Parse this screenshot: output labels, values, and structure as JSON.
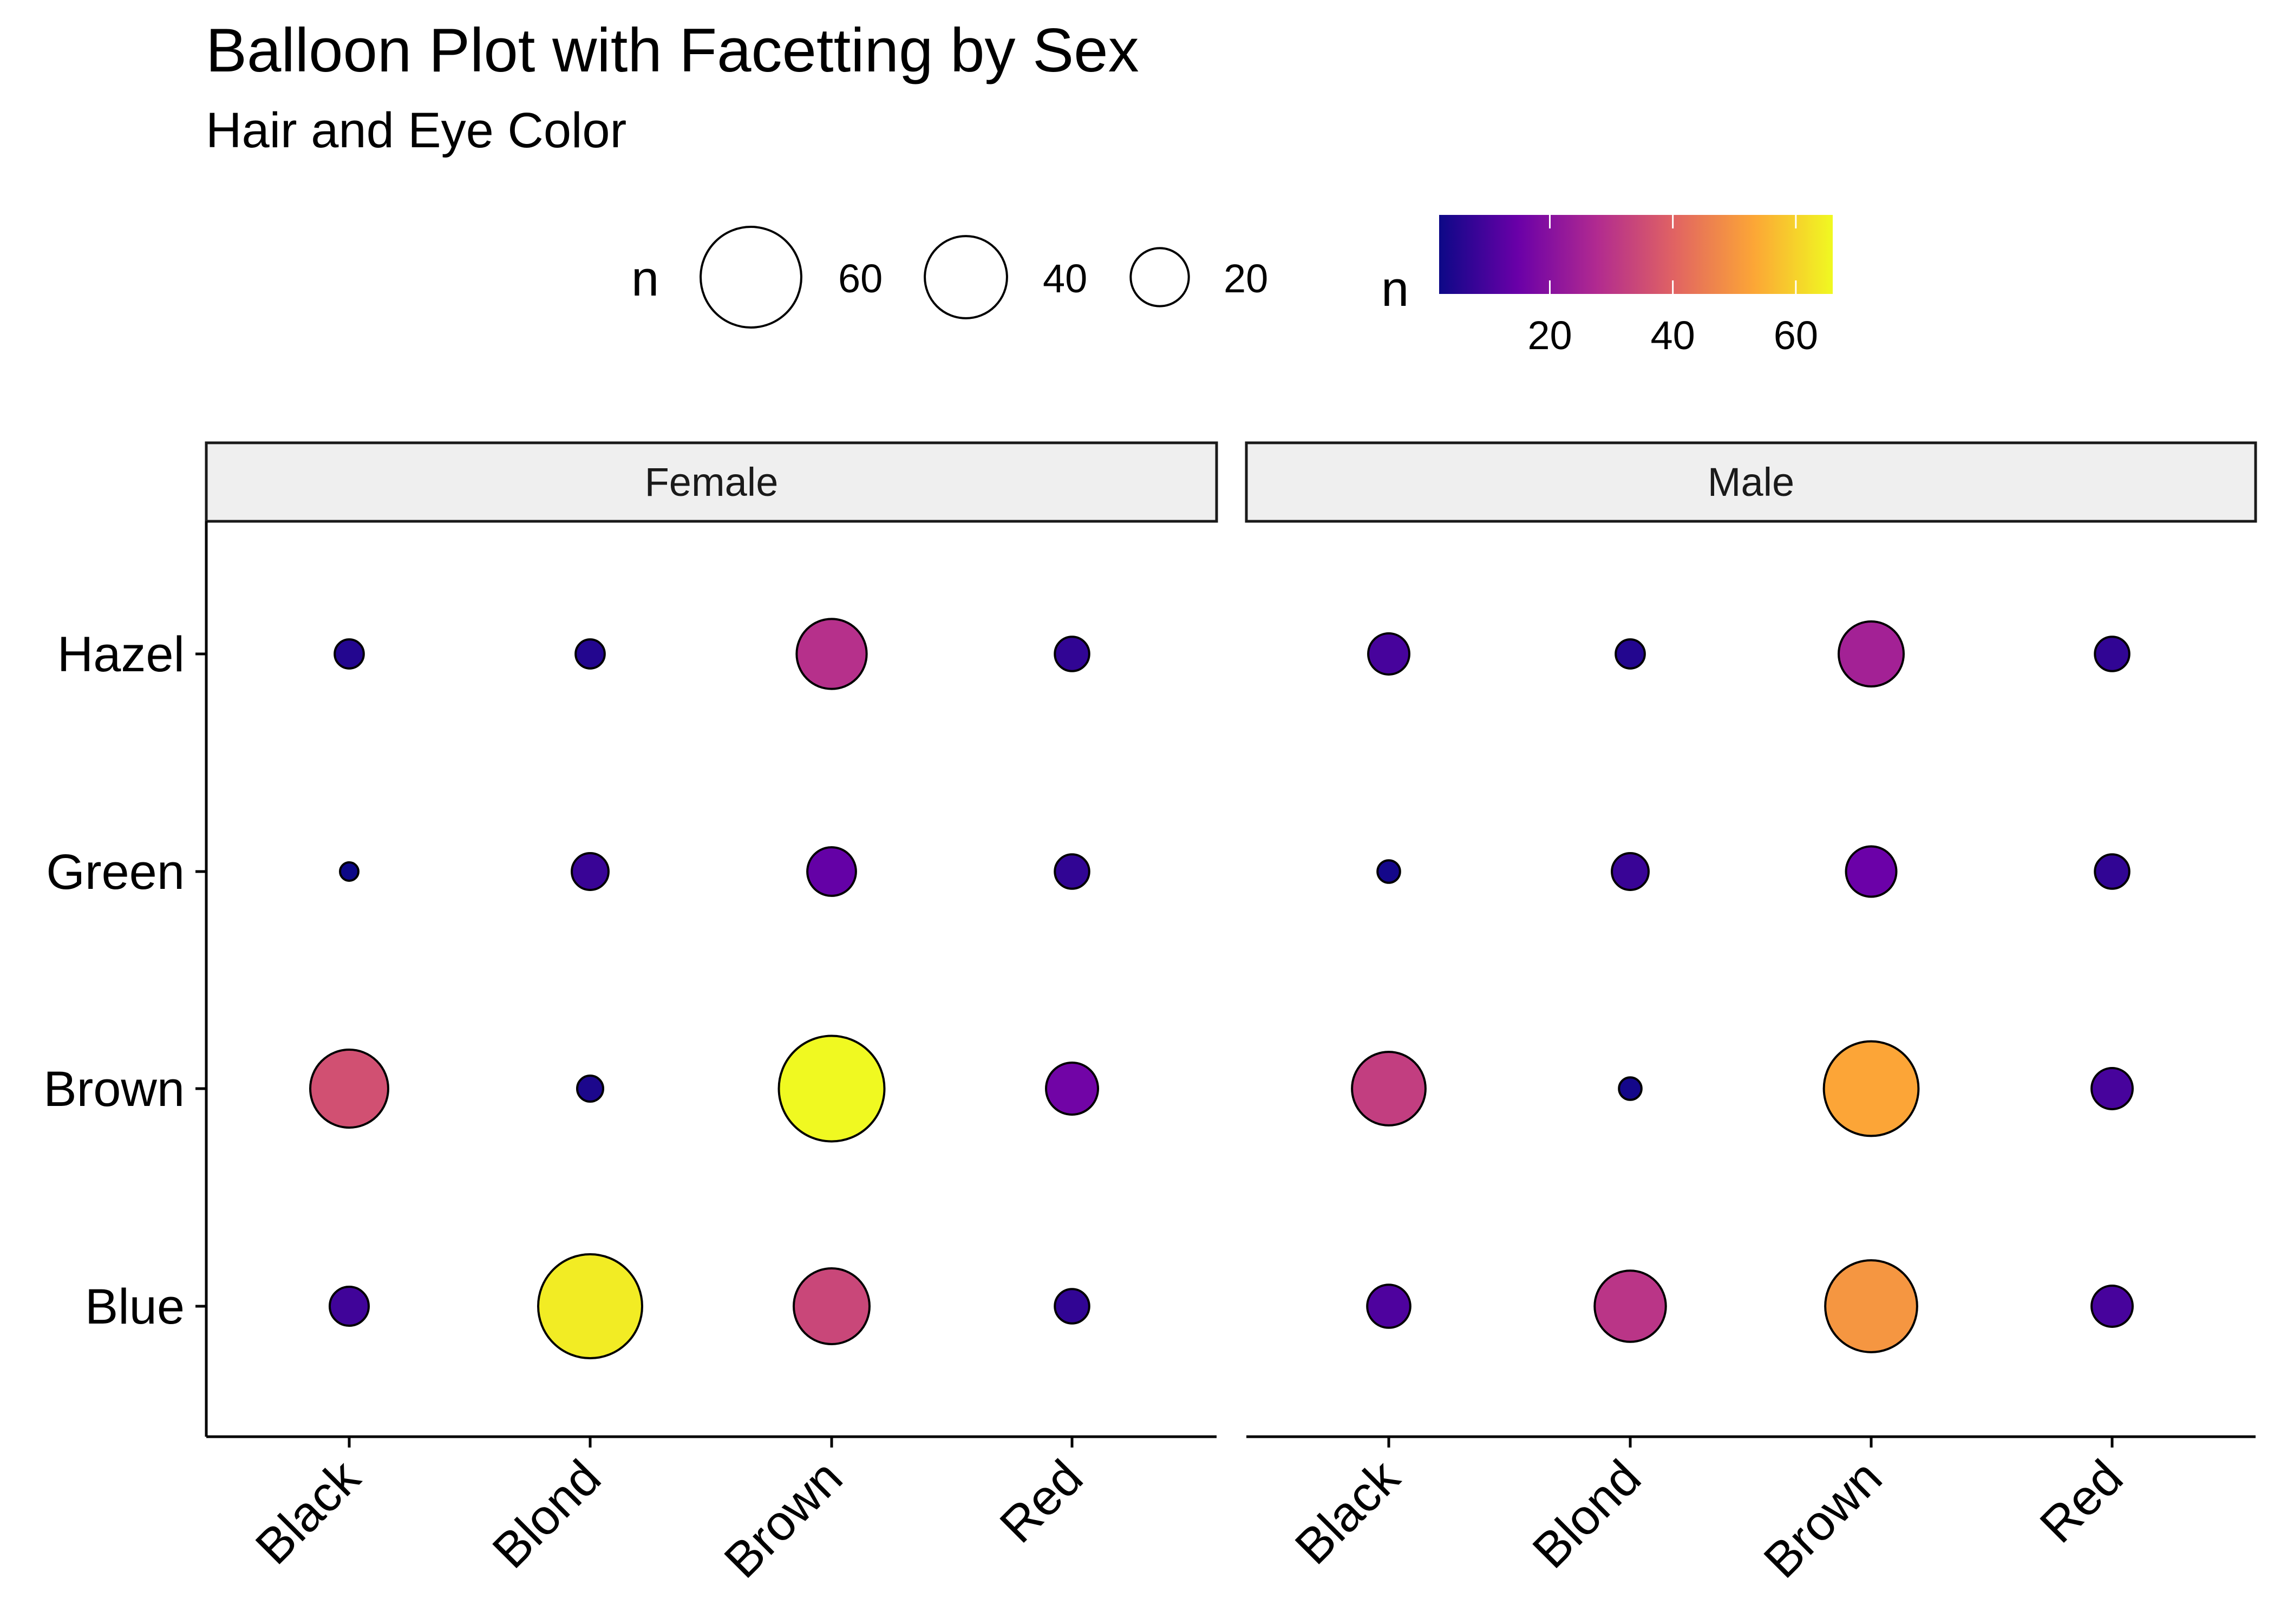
{
  "chart_data": {
    "type": "scatter",
    "title": "Balloon Plot with Facetting by Sex",
    "subtitle": "Hair and Eye Color",
    "x_categories": [
      "Black",
      "Blond",
      "Brown",
      "Red"
    ],
    "y_categories": [
      "Blue",
      "Brown",
      "Green",
      "Hazel"
    ],
    "facets": [
      {
        "name": "Female",
        "values": {
          "Black": {
            "Blue": 9,
            "Brown": 36,
            "Green": 2,
            "Hazel": 5
          },
          "Blond": {
            "Blue": 64,
            "Brown": 4,
            "Green": 8,
            "Hazel": 5
          },
          "Brown": {
            "Blue": 34,
            "Brown": 66,
            "Green": 14,
            "Hazel": 29
          },
          "Red": {
            "Blue": 7,
            "Brown": 16,
            "Green": 7,
            "Hazel": 7
          }
        }
      },
      {
        "name": "Male",
        "values": {
          "Black": {
            "Blue": 11,
            "Brown": 32,
            "Green": 3,
            "Hazel": 10
          },
          "Blond": {
            "Blue": 30,
            "Brown": 3,
            "Green": 8,
            "Hazel": 5
          },
          "Brown": {
            "Blue": 50,
            "Brown": 53,
            "Green": 15,
            "Hazel": 25
          },
          "Red": {
            "Blue": 10,
            "Brown": 10,
            "Green": 7,
            "Hazel": 7
          }
        }
      }
    ],
    "size_legend": {
      "title": "n",
      "breaks": [
        60,
        40,
        20
      ]
    },
    "color_legend": {
      "title": "n",
      "breaks": [
        20,
        40,
        60
      ],
      "range": [
        2,
        66
      ],
      "palette": [
        "#0d0887",
        "#6a00a8",
        "#b12a90",
        "#e16462",
        "#fca636",
        "#f0f921"
      ]
    },
    "legend_position": "top",
    "grid": false
  }
}
